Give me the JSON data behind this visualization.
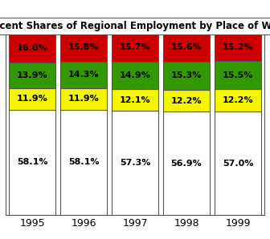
{
  "title": "Percent Shares of Regional Employment by Place of Work",
  "years": [
    "1995",
    "1996",
    "1997",
    "1998",
    "1999"
  ],
  "white_values": [
    58.1,
    58.1,
    57.3,
    56.9,
    57.0
  ],
  "yellow_values": [
    11.9,
    11.9,
    12.1,
    12.2,
    12.2
  ],
  "green_values": [
    13.9,
    14.3,
    14.9,
    15.3,
    15.5
  ],
  "red_values": [
    16.0,
    15.8,
    15.7,
    15.6,
    15.2
  ],
  "white_color": "#ffffff",
  "yellow_color": "#f5f500",
  "green_color": "#339900",
  "red_color": "#cc0000",
  "bar_edge_color": "#555555",
  "background_color": "#ffffff",
  "title_fontsize": 8.5,
  "label_fontsize": 8.0,
  "tick_fontsize": 9,
  "ylim": [
    0,
    100
  ]
}
